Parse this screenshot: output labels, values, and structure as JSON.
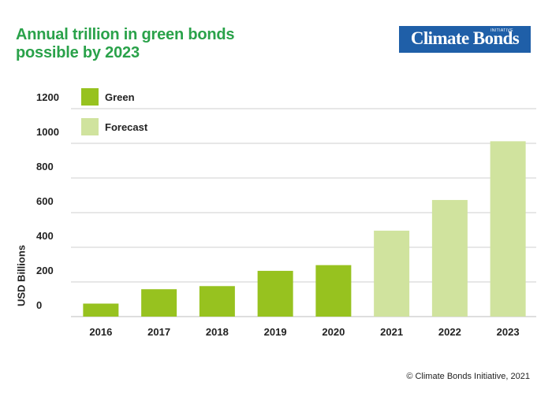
{
  "title": "Annual trillion in green bonds possible by 2023",
  "logo": {
    "text": "Climate Bonds",
    "subtext": "INITIATIVE"
  },
  "credit": "© Climate Bonds Initiative, 2021",
  "colors": {
    "green": "#97c21f",
    "forecast": "#d0e39e",
    "title": "#2aa24a",
    "logo_bg": "#1f5fa8",
    "grid": "#cfcfcf"
  },
  "chart_data": {
    "type": "bar",
    "title": "Annual trillion in green bonds possible by 2023",
    "xlabel": "",
    "ylabel": "USD Billions",
    "ylim": [
      0,
      1200
    ],
    "yticks": [
      0,
      200,
      400,
      600,
      800,
      1000,
      1200
    ],
    "categories": [
      "2016",
      "2017",
      "2018",
      "2019",
      "2020",
      "2021",
      "2022",
      "2023"
    ],
    "values": [
      75,
      158,
      176,
      264,
      297,
      496,
      673,
      1012
    ],
    "series_type": [
      "Green",
      "Green",
      "Green",
      "Green",
      "Green",
      "Forecast",
      "Forecast",
      "Forecast"
    ],
    "legend": [
      {
        "name": "Green",
        "color": "#97c21f"
      },
      {
        "name": "Forecast",
        "color": "#d0e39e"
      }
    ],
    "legend_position": "top-left",
    "grid": true
  }
}
